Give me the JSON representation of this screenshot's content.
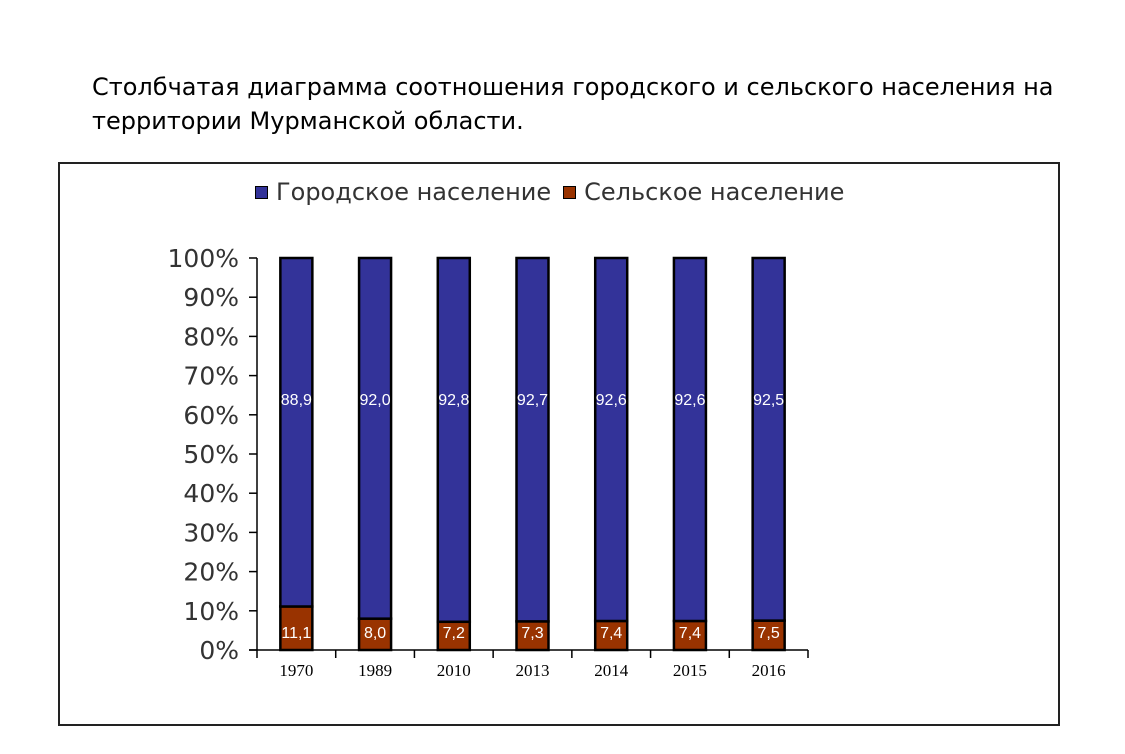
{
  "page": {
    "title": "Столбчатая диаграмма соотношения городского и сельского населения на территории Мурманской области."
  },
  "legend": {
    "urban_label": "Городское население",
    "rural_label": "Сельское население"
  },
  "colors": {
    "urban": "#333399",
    "rural": "#993300",
    "label": "#ffffff",
    "axis": "#000000"
  },
  "chart_data": {
    "type": "bar",
    "stacked": "percent",
    "categories": [
      "1970",
      "1989",
      "2010",
      "2013",
      "2014",
      "2015",
      "2016"
    ],
    "series": [
      {
        "name": "Сельское население",
        "values": [
          11.1,
          8.0,
          7.2,
          7.3,
          7.4,
          7.4,
          7.5
        ],
        "labels": [
          "11,1",
          "8,0",
          "7,2",
          "7,3",
          "7,4",
          "7,4",
          "7,5"
        ]
      },
      {
        "name": "Городское население",
        "values": [
          88.9,
          92.0,
          92.8,
          92.7,
          92.6,
          92.6,
          92.5
        ],
        "labels": [
          "88,9",
          "92,0",
          "92,8",
          "92,7",
          "92,6",
          "92,6",
          "92,5"
        ]
      }
    ],
    "yticks": [
      "0%",
      "10%",
      "20%",
      "30%",
      "40%",
      "50%",
      "60%",
      "70%",
      "80%",
      "90%",
      "100%"
    ],
    "ylim": [
      0,
      100
    ],
    "legend_position": "top",
    "grid": false
  }
}
